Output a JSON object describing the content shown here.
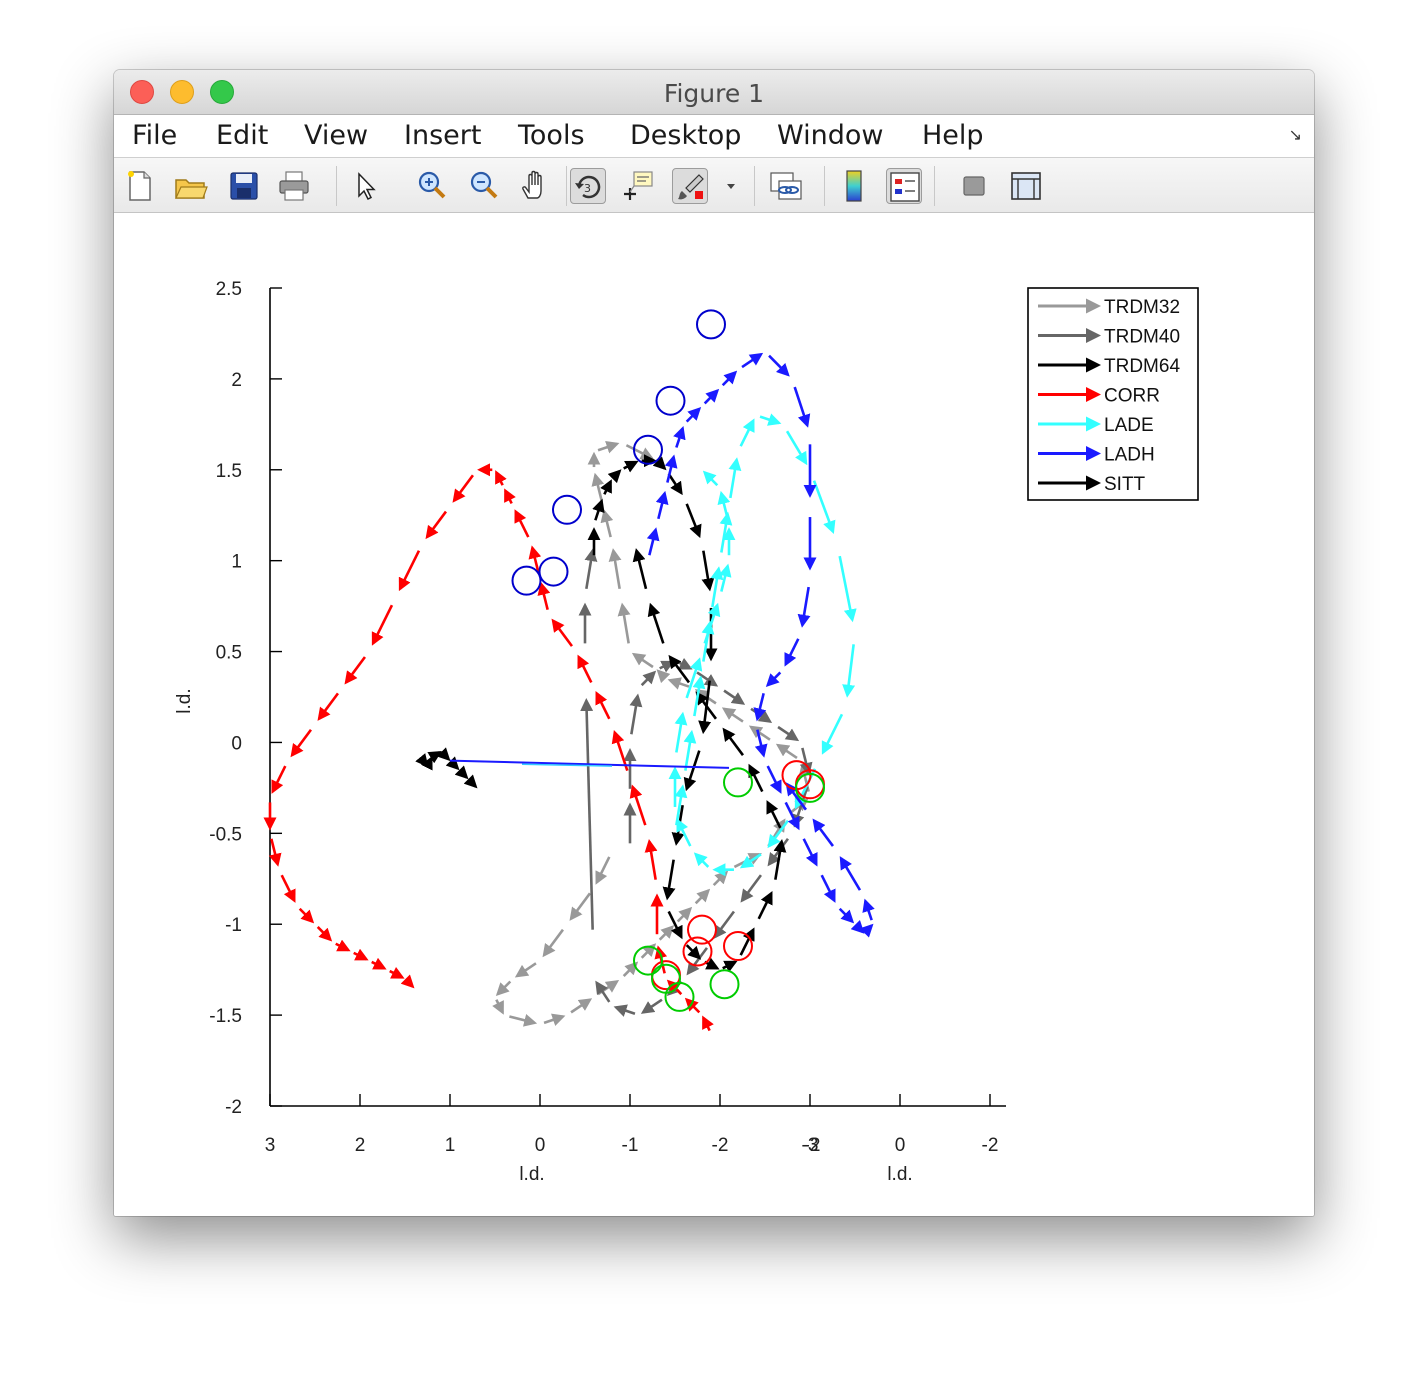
{
  "window": {
    "title": "Figure 1"
  },
  "menu": {
    "items": [
      {
        "label": "File",
        "name": "menu-file"
      },
      {
        "label": "Edit",
        "name": "menu-edit"
      },
      {
        "label": "View",
        "name": "menu-view"
      },
      {
        "label": "Insert",
        "name": "menu-insert"
      },
      {
        "label": "Tools",
        "name": "menu-tools"
      },
      {
        "label": "Desktop",
        "name": "menu-desktop"
      },
      {
        "label": "Window",
        "name": "menu-window"
      },
      {
        "label": "Help",
        "name": "menu-help"
      }
    ]
  },
  "toolbar": {
    "buttons": [
      {
        "icon": "new-figure-icon"
      },
      {
        "icon": "open-file-icon"
      },
      {
        "icon": "save-icon"
      },
      {
        "icon": "print-icon"
      },
      {
        "icon": "edit-plot-arrow-icon"
      },
      {
        "icon": "zoom-in-icon"
      },
      {
        "icon": "zoom-out-icon"
      },
      {
        "icon": "pan-hand-icon"
      },
      {
        "icon": "rotate-3d-icon",
        "toggled": true
      },
      {
        "icon": "data-cursor-icon"
      },
      {
        "icon": "brush-icon",
        "toggled": true
      },
      {
        "icon": "dropdown-arrow-icon"
      },
      {
        "icon": "link-plot-icon"
      },
      {
        "icon": "colorbar-icon"
      },
      {
        "icon": "legend-icon",
        "toggled": true
      },
      {
        "icon": "hide-plot-tools-icon"
      },
      {
        "icon": "show-plot-tools-icon"
      }
    ]
  },
  "chart_data": {
    "type": "line",
    "title": "",
    "xlabel": "l.d.",
    "xlabel_right": "l.d.",
    "ylabel": "l.d.",
    "ylim": [
      -2,
      2.5
    ],
    "y_ticks": [
      -2,
      -1.5,
      -1,
      -0.5,
      0,
      0.5,
      1,
      1.5,
      2,
      2.5
    ],
    "y_tick_labels": [
      "-2",
      "-1.5",
      "-1",
      "-0.5",
      "0",
      "0.5",
      "1",
      "1.5",
      "2",
      "2.5"
    ],
    "x_tick_labels": [
      "3",
      "2",
      "1",
      "0",
      "-1",
      "-2",
      "-3",
      "0",
      "-2"
    ],
    "x_overlap_tick_label": "-2",
    "grid": false,
    "legend_position": "top-right",
    "legend": [
      {
        "name": "TRDM32",
        "color": "#999999"
      },
      {
        "name": "TRDM40",
        "color": "#666666"
      },
      {
        "name": "TRDM64",
        "color": "#000000"
      },
      {
        "name": "CORR",
        "color": "#ff0000"
      },
      {
        "name": "LADE",
        "color": "#33ffff"
      },
      {
        "name": "LADH",
        "color": "#1a1aff"
      },
      {
        "name": "SITT",
        "color": "#000000"
      }
    ],
    "series": [
      {
        "name": "TRDM32",
        "color": "#999999",
        "x": [
          -0.8,
          -0.6,
          -0.3,
          0.0,
          0.3,
          0.5,
          0.4,
          0.0,
          -0.3,
          -0.6,
          -0.9,
          -1.1,
          -1.3,
          -1.5,
          -1.7,
          -1.9,
          -2.1,
          -2.5,
          -2.75,
          -3.0,
          -2.9,
          -2.6,
          -2.3,
          -2.0,
          -1.7,
          -1.4,
          -1.3,
          -1.0,
          -0.9,
          -0.8,
          -0.7,
          -0.6,
          -0.6,
          -0.9,
          -1.3
        ],
        "y": [
          -0.6,
          -0.8,
          -1.0,
          -1.2,
          -1.3,
          -1.4,
          -1.5,
          -1.55,
          -1.5,
          -1.4,
          -1.3,
          -1.2,
          -1.1,
          -1.0,
          -0.9,
          -0.8,
          -0.7,
          -0.6,
          -0.4,
          -0.3,
          -0.1,
          0.0,
          0.1,
          0.2,
          0.3,
          0.35,
          0.4,
          0.5,
          0.8,
          1.1,
          1.3,
          1.5,
          1.6,
          1.65,
          1.55
        ]
      },
      {
        "name": "TRDM40",
        "color": "#666666",
        "x": [
          -1.0,
          -1.0,
          -1.0,
          -1.1,
          -1.3,
          -1.5,
          -1.7,
          -2.0,
          -2.3,
          -2.6,
          -2.9,
          -3.0,
          -2.8,
          -2.5,
          -2.2,
          -1.9,
          -1.6,
          -1.4,
          -1.1,
          -0.8,
          -0.6,
          -0.5,
          -0.5,
          -0.6
        ],
        "y": [
          -0.6,
          -0.3,
          0.0,
          0.3,
          0.4,
          0.45,
          0.4,
          0.3,
          0.2,
          0.1,
          0.0,
          -0.2,
          -0.5,
          -0.7,
          -0.9,
          -1.1,
          -1.3,
          -1.4,
          -1.5,
          -1.45,
          -1.3,
          0.5,
          0.8,
          1.1
        ]
      },
      {
        "name": "TRDM64",
        "color": "#000000",
        "x": [
          -0.6,
          -0.6,
          -0.7,
          -0.8,
          -0.9,
          -1.1,
          -1.3,
          -1.4,
          -1.6,
          -1.8,
          -1.9,
          -1.9,
          -1.8,
          -1.6,
          -1.5,
          -1.4,
          -1.6,
          -1.8,
          -2.0,
          -2.2,
          -2.4,
          -2.6,
          -2.7,
          -2.5,
          -2.3,
          -2.0,
          -1.7,
          -1.4,
          -1.2,
          -1.05
        ],
        "y": [
          1.0,
          1.2,
          1.35,
          1.45,
          1.5,
          1.55,
          1.55,
          1.5,
          1.35,
          1.1,
          0.8,
          0.4,
          0.0,
          -0.3,
          -0.6,
          -0.9,
          -1.1,
          -1.2,
          -1.25,
          -1.2,
          -1.0,
          -0.8,
          -0.5,
          -0.3,
          -0.1,
          0.1,
          0.3,
          0.5,
          0.8,
          1.1
        ]
      },
      {
        "name": "CORR",
        "color": "#ff0000",
        "x": [
          -1.9,
          -1.8,
          -1.6,
          -1.4,
          -1.3,
          -1.3,
          -1.2,
          -1.0,
          -0.8,
          -0.6,
          -0.4,
          -0.1,
          0.0,
          0.1,
          0.3,
          0.4,
          0.5,
          0.7,
          1.0,
          1.3,
          1.6,
          1.9,
          2.2,
          2.5,
          2.8,
          3.0,
          3.0,
          2.9,
          2.7,
          2.5,
          2.3,
          2.1,
          1.9,
          1.7,
          1.5,
          1.4
        ],
        "y": [
          -1.6,
          -1.5,
          -1.4,
          -1.3,
          -1.1,
          -0.8,
          -0.5,
          -0.2,
          0.1,
          0.3,
          0.5,
          0.7,
          0.9,
          1.1,
          1.3,
          1.4,
          1.5,
          1.5,
          1.3,
          1.1,
          0.8,
          0.5,
          0.3,
          0.1,
          -0.1,
          -0.3,
          -0.5,
          -0.7,
          -0.9,
          -1.0,
          -1.1,
          -1.15,
          -1.2,
          -1.25,
          -1.3,
          -1.35
        ]
      },
      {
        "name": "LADE",
        "color": "#33ffff",
        "x": [
          -1.5,
          -1.6,
          -1.7,
          -1.8,
          -1.9,
          -2.0,
          -2.1,
          -2.2,
          -2.4,
          -2.7,
          -3.0,
          -3.3,
          -3.5,
          -3.4,
          -3.1,
          -2.8,
          -2.5,
          -2.2,
          -1.9,
          -1.7,
          -1.5,
          -1.5,
          -1.6,
          -1.8,
          -2.0,
          -2.1,
          -2.1,
          -2.0,
          -1.8
        ],
        "y": [
          -0.5,
          -0.2,
          0.1,
          0.4,
          0.7,
          1.0,
          1.3,
          1.6,
          1.8,
          1.75,
          1.5,
          1.1,
          0.6,
          0.2,
          -0.1,
          -0.4,
          -0.6,
          -0.7,
          -0.7,
          -0.6,
          -0.4,
          -0.1,
          0.2,
          0.5,
          0.8,
          1.0,
          1.2,
          1.4,
          1.5
        ]
      },
      {
        "name": "LADH",
        "color": "#1a1aff",
        "x": [
          -1.2,
          -1.3,
          -1.4,
          -1.5,
          -1.6,
          -1.8,
          -2.0,
          -2.2,
          -2.5,
          -2.8,
          -3.0,
          -3.0,
          -3.0,
          -2.9,
          -2.7,
          -2.5,
          -2.4,
          -2.5,
          -2.7,
          -2.9,
          -3.1,
          -3.3,
          -3.5,
          -3.6,
          -3.7,
          -3.6,
          -3.3,
          -3.0,
          -2.7
        ],
        "y": [
          1.0,
          1.2,
          1.4,
          1.6,
          1.75,
          1.85,
          1.95,
          2.05,
          2.15,
          2.0,
          1.7,
          1.3,
          0.9,
          0.6,
          0.4,
          0.3,
          0.1,
          -0.1,
          -0.3,
          -0.5,
          -0.7,
          -0.9,
          -1.0,
          -1.05,
          -1.0,
          -0.85,
          -0.6,
          -0.4,
          -0.2
        ]
      },
      {
        "name": "SITT",
        "color": "#000000",
        "x": [
          1.3,
          1.25,
          1.2,
          1.1,
          1.0,
          0.9,
          0.8,
          0.7
        ],
        "y": [
          -0.1,
          -0.13,
          -0.08,
          -0.05,
          -0.1,
          -0.15,
          -0.2,
          -0.25
        ]
      }
    ],
    "marker_circles": [
      {
        "color": "#0000cc",
        "x": -1.9,
        "y": 2.3
      },
      {
        "color": "#0000cc",
        "x": -1.45,
        "y": 1.88
      },
      {
        "color": "#0000cc",
        "x": -1.2,
        "y": 1.61
      },
      {
        "color": "#0000cc",
        "x": -0.3,
        "y": 1.28
      },
      {
        "color": "#0000cc",
        "x": -0.15,
        "y": 0.94
      },
      {
        "color": "#0000cc",
        "x": 0.15,
        "y": 0.89
      },
      {
        "color": "#ff0000",
        "x": -1.8,
        "y": -1.03
      },
      {
        "color": "#ff0000",
        "x": -2.2,
        "y": -1.12
      },
      {
        "color": "#ff0000",
        "x": -1.75,
        "y": -1.15
      },
      {
        "color": "#ff0000",
        "x": -1.4,
        "y": -1.28
      },
      {
        "color": "#ff0000",
        "x": -2.85,
        "y": -0.18
      },
      {
        "color": "#ff0000",
        "x": -3.0,
        "y": -0.23
      },
      {
        "color": "#00cc00",
        "x": -2.2,
        "y": -0.22
      },
      {
        "color": "#00cc00",
        "x": -3.0,
        "y": -0.25
      },
      {
        "color": "#00cc00",
        "x": -1.2,
        "y": -1.2
      },
      {
        "color": "#00cc00",
        "x": -1.4,
        "y": -1.3
      },
      {
        "color": "#00cc00",
        "x": -1.55,
        "y": -1.4
      },
      {
        "color": "#00cc00",
        "x": -2.05,
        "y": -1.33
      }
    ]
  }
}
